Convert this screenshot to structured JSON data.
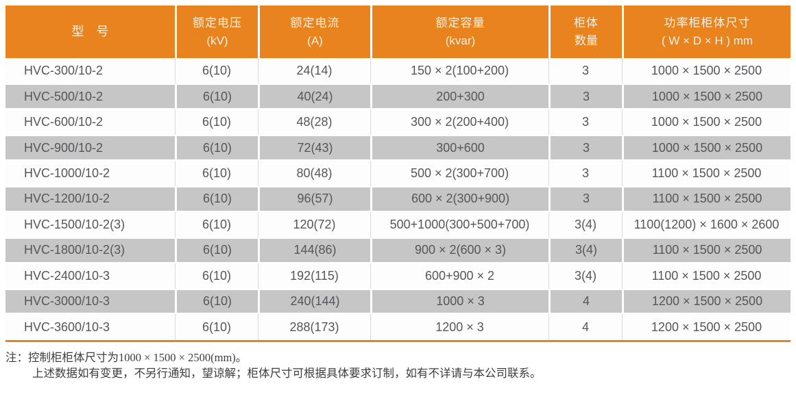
{
  "table": {
    "columns": [
      {
        "line1": "型　号",
        "line2": ""
      },
      {
        "line1": "额定电压",
        "line2": "(kV)"
      },
      {
        "line1": "额定电流",
        "line2": "(A)"
      },
      {
        "line1": "额定容量",
        "line2": "(kvar)"
      },
      {
        "line1": "柜体",
        "line2": "数量"
      },
      {
        "line1": "功率柜柜体尺寸",
        "line2": "( W × D × H ) mm"
      }
    ],
    "rows": [
      [
        "HVC-300/10-2",
        "6(10)",
        "24(14)",
        "150 × 2(100+200)",
        "3",
        "1000 × 1500 × 2500"
      ],
      [
        "HVC-500/10-2",
        "6(10)",
        "40(24)",
        "200+300",
        "3",
        "1000 × 1500 × 2500"
      ],
      [
        "HVC-600/10-2",
        "6(10)",
        "48(28)",
        "300 × 2(200+400)",
        "3",
        "1000 × 1500 × 2500"
      ],
      [
        "HVC-900/10-2",
        "6(10)",
        "72(43)",
        "300+600",
        "3",
        "1000 × 1500 × 2500"
      ],
      [
        "HVC-1000/10-2",
        "6(10)",
        "80(48)",
        "500 × 2(300+700)",
        "3",
        "1100 × 1500 × 2500"
      ],
      [
        "HVC-1200/10-2",
        "6(10)",
        "96(57)",
        "600 × 2(300+900)",
        "3",
        "1100 × 1500 × 2500"
      ],
      [
        "HVC-1500/10-2(3)",
        "6(10)",
        "120(72)",
        "500+1000(300+500+700)",
        "3(4)",
        "1100(1200) × 1600 × 2600"
      ],
      [
        "HVC-1800/10-2(3)",
        "6(10)",
        "144(86)",
        "900 × 2(600 × 3)",
        "3(4)",
        "1100 × 1500 × 2500"
      ],
      [
        "HVC-2400/10-3",
        "6(10)",
        "192(115)",
        "600+900 × 2",
        "3(4)",
        "1100 × 1500 × 2500"
      ],
      [
        "HVC-3000/10-3",
        "6(10)",
        "240(144)",
        "1000 × 3",
        "4",
        "1200 × 1500 × 2500"
      ],
      [
        "HVC-3600/10-3",
        "6(10)",
        "288(173)",
        "1200 × 3",
        "4",
        "1200 × 1500 × 2500"
      ]
    ]
  },
  "notes": {
    "note1_prefix": "注：控制柜柜体尺寸为",
    "note1_dims": "1000 × 1500 × 2500(mm)",
    "note1_suffix": "。",
    "note2": "上述数据如有变更，不另行通知，望谅解；柜体尺寸可根据具体要求订制，如有不详请与本公司联系。"
  },
  "colors": {
    "header_bg": "#E8831E",
    "header_text": "#FAF1E5",
    "row_alt_bg": "#C6C6C6",
    "row_bg": "#FDFDFD",
    "body_text": "#55565A",
    "bottom_rule": "#E0851F"
  }
}
